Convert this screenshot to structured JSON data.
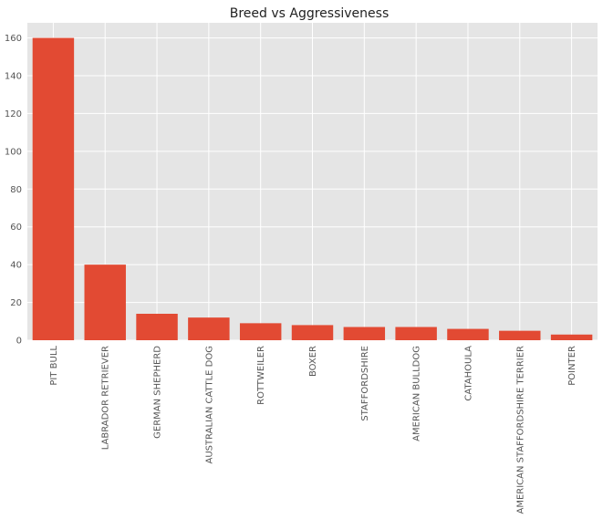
{
  "chart_data": {
    "type": "bar",
    "title": "Breed vs Aggressiveness",
    "xlabel": "",
    "ylabel": "",
    "categories": [
      "PIT BULL",
      "LABRADOR RETRIEVER",
      "GERMAN SHEPHERD",
      "AUSTRALIAN CATTLE DOG",
      "ROTTWEILER",
      "BOXER",
      "STAFFORDSHIRE",
      "AMERICAN BULLDOG",
      "CATAHOULA",
      "AMERICAN STAFFORDSHIRE TERRIER",
      "POINTER"
    ],
    "values": [
      160,
      40,
      14,
      12,
      9,
      8,
      7,
      7,
      6,
      5,
      3
    ],
    "ylim": [
      0,
      168
    ],
    "yticks": [
      "0",
      "20",
      "40",
      "60",
      "80",
      "100",
      "120",
      "140",
      "160"
    ],
    "grid": true,
    "legend": "none",
    "colors": {
      "bar": "#E24A33",
      "plot_background": "#E5E5E5",
      "grid": "#FFFFFF",
      "tick_text": "#555555",
      "title_text": "#222222"
    }
  }
}
